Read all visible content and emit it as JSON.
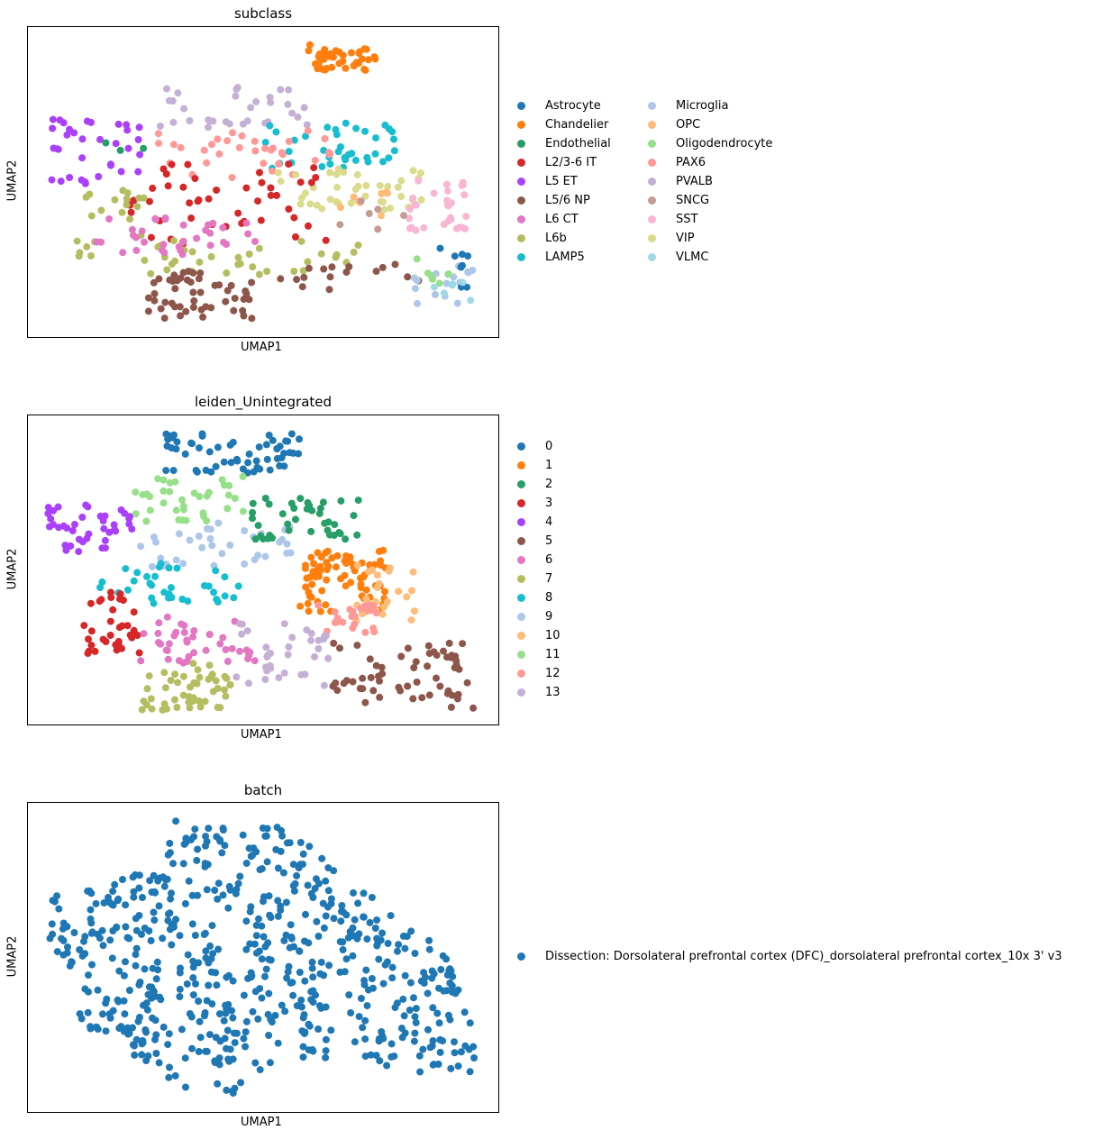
{
  "chart_data": [
    {
      "type": "scatter",
      "title": "subclass",
      "xlabel": "UMAP1",
      "ylabel": "UMAP2",
      "grid": false,
      "legend_position": "right",
      "legend": [
        {
          "name": "Astrocyte",
          "color": "#1f77b4"
        },
        {
          "name": "Chandelier",
          "color": "#ff7f0e"
        },
        {
          "name": "Endothelial",
          "color": "#279e68"
        },
        {
          "name": "L2/3-6 IT",
          "color": "#d62728"
        },
        {
          "name": "L5 ET",
          "color": "#aa40fc"
        },
        {
          "name": "L5/6 NP",
          "color": "#8c564b"
        },
        {
          "name": "L6 CT",
          "color": "#e377c2"
        },
        {
          "name": "L6b",
          "color": "#b5bd61"
        },
        {
          "name": "LAMP5",
          "color": "#17becf"
        },
        {
          "name": "Microglia",
          "color": "#aec7e8"
        },
        {
          "name": "OPC",
          "color": "#ffbb78"
        },
        {
          "name": "Oligodendrocyte",
          "color": "#98df8a"
        },
        {
          "name": "PAX6",
          "color": "#ff9896"
        },
        {
          "name": "PVALB",
          "color": "#c5b0d5"
        },
        {
          "name": "SNCG",
          "color": "#c49c94"
        },
        {
          "name": "SST",
          "color": "#f7b6d2"
        },
        {
          "name": "VIP",
          "color": "#dbdb8d"
        },
        {
          "name": "VLMC",
          "color": "#9edae5"
        }
      ],
      "series": [
        {
          "category": "Chandelier",
          "x": [
            6.8,
            8.5
          ],
          "y": [
            8.5,
            9.4
          ],
          "count": 42
        },
        {
          "category": "PVALB",
          "x": [
            3.0,
            6.8
          ],
          "y": [
            6.6,
            8.0
          ],
          "count": 32
        },
        {
          "category": "L5 ET",
          "x": [
            0.3,
            2.6
          ],
          "y": [
            4.7,
            6.9
          ],
          "count": 34
        },
        {
          "category": "LAMP5",
          "x": [
            5.7,
            9.0
          ],
          "y": [
            5.2,
            6.8
          ],
          "count": 38
        },
        {
          "category": "PAX6",
          "x": [
            3.0,
            7.5
          ],
          "y": [
            4.9,
            6.5
          ],
          "count": 34
        },
        {
          "category": "VIP",
          "x": [
            6.0,
            9.7
          ],
          "y": [
            3.8,
            5.2
          ],
          "count": 40
        },
        {
          "category": "SST",
          "x": [
            9.3,
            10.9
          ],
          "y": [
            3.0,
            4.8
          ],
          "count": 30
        },
        {
          "category": "L2/3-6 IT",
          "x": [
            2.1,
            7.4
          ],
          "y": [
            2.6,
            5.4
          ],
          "count": 46
        },
        {
          "category": "L6b",
          "x": [
            1.0,
            2.8
          ],
          "y": [
            2.0,
            4.6
          ],
          "count": 22
        },
        {
          "category": "L6b",
          "x": [
            2.8,
            8.2
          ],
          "y": [
            1.6,
            2.8
          ],
          "count": 34
        },
        {
          "category": "L6 CT",
          "x": [
            1.4,
            5.6
          ],
          "y": [
            2.3,
            3.6
          ],
          "count": 34
        },
        {
          "category": "L5/6 NP",
          "x": [
            2.8,
            5.4
          ],
          "y": [
            0.1,
            1.8
          ],
          "count": 50
        },
        {
          "category": "L5/6 NP",
          "x": [
            6.1,
            9.6
          ],
          "y": [
            1.1,
            2.0
          ],
          "count": 16
        },
        {
          "category": "Microglia",
          "x": [
            9.4,
            11.0
          ],
          "y": [
            0.6,
            2.0
          ],
          "count": 16
        },
        {
          "category": "OPC",
          "x": [
            7.6,
            9.6
          ],
          "y": [
            3.4,
            4.6
          ],
          "count": 8
        },
        {
          "category": "Astrocyte",
          "x": [
            9.6,
            10.8
          ],
          "y": [
            1.0,
            2.6
          ],
          "count": 8
        },
        {
          "category": "Oligodendrocyte",
          "x": [
            9.2,
            10.8
          ],
          "y": [
            1.3,
            2.2
          ],
          "count": 6
        },
        {
          "category": "VLMC",
          "x": [
            9.8,
            11.0
          ],
          "y": [
            0.7,
            1.4
          ],
          "count": 6
        },
        {
          "category": "SNCG",
          "x": [
            7.4,
            9.2
          ],
          "y": [
            3.0,
            4.2
          ],
          "count": 6
        },
        {
          "category": "Endothelial",
          "x": [
            1.3,
            3.0
          ],
          "y": [
            5.7,
            6.2
          ],
          "count": 3
        }
      ]
    },
    {
      "type": "scatter",
      "title": "leiden_Unintegrated",
      "xlabel": "UMAP1",
      "ylabel": "UMAP2",
      "grid": false,
      "legend_position": "right",
      "legend": [
        {
          "name": "0",
          "color": "#1f77b4"
        },
        {
          "name": "1",
          "color": "#ff7f0e"
        },
        {
          "name": "2",
          "color": "#279e68"
        },
        {
          "name": "3",
          "color": "#d62728"
        },
        {
          "name": "4",
          "color": "#aa40fc"
        },
        {
          "name": "5",
          "color": "#8c564b"
        },
        {
          "name": "6",
          "color": "#e377c2"
        },
        {
          "name": "7",
          "color": "#b5bd61"
        },
        {
          "name": "8",
          "color": "#17becf"
        },
        {
          "name": "9",
          "color": "#aec7e8"
        },
        {
          "name": "10",
          "color": "#ffbb78"
        },
        {
          "name": "11",
          "color": "#98df8a"
        },
        {
          "name": "12",
          "color": "#ff9896"
        },
        {
          "name": "13",
          "color": "#c5b0d5"
        }
      ],
      "series": [
        {
          "category": "0",
          "x": [
            3.2,
            6.6
          ],
          "y": [
            8.0,
            9.4
          ],
          "count": 60
        },
        {
          "category": "11",
          "x": [
            2.4,
            5.3
          ],
          "y": [
            6.4,
            8.0
          ],
          "count": 36
        },
        {
          "category": "4",
          "x": [
            0.3,
            2.4
          ],
          "y": [
            5.2,
            7.0
          ],
          "count": 40
        },
        {
          "category": "9",
          "x": [
            2.6,
            6.4
          ],
          "y": [
            4.8,
            6.4
          ],
          "count": 36
        },
        {
          "category": "2",
          "x": [
            5.4,
            8.3
          ],
          "y": [
            5.8,
            7.2
          ],
          "count": 40
        },
        {
          "category": "1",
          "x": [
            6.6,
            8.8
          ],
          "y": [
            3.3,
            5.6
          ],
          "count": 80
        },
        {
          "category": "10",
          "x": [
            8.0,
            9.6
          ],
          "y": [
            3.0,
            5.0
          ],
          "count": 24
        },
        {
          "category": "12",
          "x": [
            7.0,
            8.8
          ],
          "y": [
            2.5,
            3.6
          ],
          "count": 24
        },
        {
          "category": "8",
          "x": [
            1.6,
            5.1
          ],
          "y": [
            3.6,
            5.0
          ],
          "count": 34
        },
        {
          "category": "3",
          "x": [
            1.2,
            2.6
          ],
          "y": [
            1.9,
            4.0
          ],
          "count": 34
        },
        {
          "category": "6",
          "x": [
            2.6,
            5.5
          ],
          "y": [
            1.6,
            3.2
          ],
          "count": 40
        },
        {
          "category": "13",
          "x": [
            5.0,
            7.4
          ],
          "y": [
            0.8,
            3.0
          ],
          "count": 34
        },
        {
          "category": "7",
          "x": [
            2.6,
            5.2
          ],
          "y": [
            0.0,
            1.6
          ],
          "count": 48
        },
        {
          "category": "5",
          "x": [
            7.4,
            11.0
          ],
          "y": [
            0.0,
            2.4
          ],
          "count": 60
        }
      ]
    },
    {
      "type": "scatter",
      "title": "batch",
      "xlabel": "UMAP1",
      "ylabel": "UMAP2",
      "grid": false,
      "legend_position": "right",
      "legend": [
        {
          "name": "Dissection: Dorsolateral prefrontal cortex (DFC)_dorsolateral prefrontal cortex_10x 3' v3",
          "color": "#1f77b4"
        }
      ],
      "series": [
        {
          "category": "Dissection: Dorsolateral prefrontal cortex (DFC)_dorsolateral prefrontal cortex_10x 3' v3",
          "x": [
            0.3,
            11.0
          ],
          "y": [
            0.0,
            9.4
          ],
          "count": 620,
          "region": "all"
        }
      ]
    }
  ]
}
